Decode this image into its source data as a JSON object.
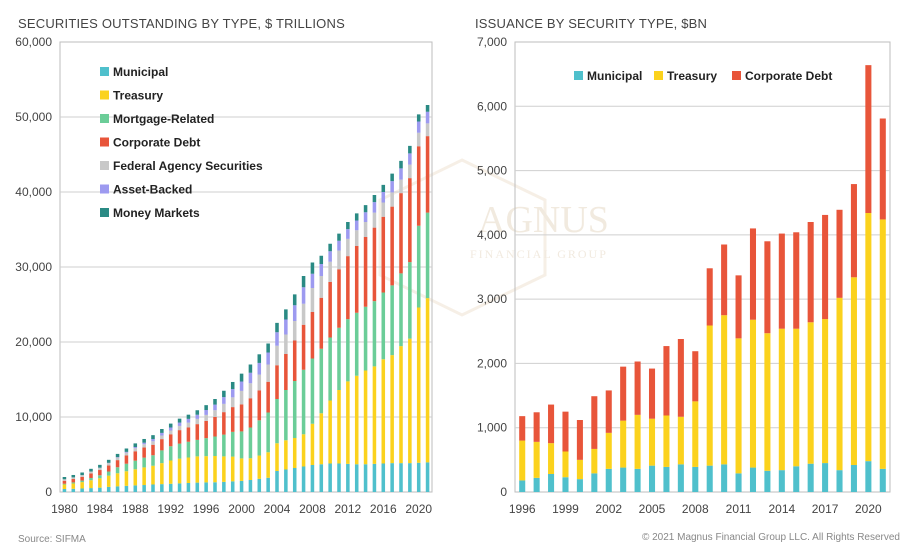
{
  "footer": {
    "source": "Source: SIFMA",
    "copyright": "© 2021 Magnus Financial Group LLC. All Rights Reserved"
  },
  "watermark": {
    "line1": "AGNUS",
    "line2": "FINANCIAL GROUP"
  },
  "colors": {
    "municipal": "#4fc0cc",
    "treasury": "#fbd21d",
    "mortgage": "#6bcd98",
    "corporate": "#e8553a",
    "agency": "#c8c8c8",
    "assetbacked": "#9d9af0",
    "money": "#2a8a84"
  },
  "chart_data": [
    {
      "type": "bar",
      "stacked": true,
      "title": "SECURITIES OUTSTANDING BY TYPE, $ TRILLIONS",
      "ylim": [
        0,
        60000
      ],
      "y_ticks": [
        "0",
        "10,000",
        "20,000",
        "30,000",
        "40,000",
        "50,000",
        "60,000"
      ],
      "x_ticks": [
        "1980",
        "1984",
        "1988",
        "1992",
        "1996",
        "2000",
        "2004",
        "2008",
        "2012",
        "2016",
        "2020"
      ],
      "grid": true,
      "legend_position": "top-left",
      "categories": [
        1980,
        1981,
        1982,
        1983,
        1984,
        1985,
        1986,
        1987,
        1988,
        1989,
        1990,
        1991,
        1992,
        1993,
        1994,
        1995,
        1996,
        1997,
        1998,
        1999,
        2000,
        2001,
        2002,
        2003,
        2004,
        2005,
        2006,
        2007,
        2008,
        2009,
        2010,
        2011,
        2012,
        2013,
        2014,
        2015,
        2016,
        2017,
        2018,
        2019,
        2020,
        2021
      ],
      "series": [
        {
          "name": "Municipal",
          "key": "municipal",
          "values": [
            400,
            430,
            470,
            520,
            580,
            680,
            750,
            820,
            880,
            930,
            1000,
            1050,
            1100,
            1150,
            1200,
            1250,
            1280,
            1300,
            1350,
            1420,
            1480,
            1600,
            1760,
            1900,
            2800,
            3000,
            3200,
            3400,
            3600,
            3700,
            3800,
            3800,
            3750,
            3700,
            3700,
            3750,
            3800,
            3850,
            3850,
            3850,
            3900,
            3950
          ]
        },
        {
          "name": "Treasury",
          "key": "treasury",
          "values": [
            600,
            700,
            850,
            1050,
            1250,
            1500,
            1750,
            1950,
            2150,
            2350,
            2500,
            2800,
            3100,
            3300,
            3400,
            3500,
            3500,
            3500,
            3400,
            3300,
            3000,
            2900,
            3100,
            3400,
            3700,
            3900,
            4000,
            4300,
            5500,
            6800,
            8400,
            9800,
            11000,
            11800,
            12500,
            13000,
            13900,
            14400,
            15600,
            16600,
            20700,
            21900
          ]
        },
        {
          "name": "Mortgage-Related",
          "key": "mortgage",
          "values": [
            100,
            150,
            200,
            300,
            400,
            550,
            800,
            1000,
            1150,
            1300,
            1400,
            1700,
            1900,
            2000,
            2100,
            2200,
            2400,
            2600,
            2900,
            3300,
            3600,
            4100,
            4700,
            5300,
            5900,
            6700,
            7600,
            8600,
            8700,
            8600,
            8400,
            8300,
            8300,
            8400,
            8500,
            8700,
            8900,
            9300,
            9700,
            10200,
            10900,
            11400
          ]
        },
        {
          "name": "Corporate Debt",
          "key": "corporate",
          "values": [
            400,
            450,
            500,
            600,
            700,
            800,
            950,
            1100,
            1250,
            1350,
            1400,
            1500,
            1600,
            1800,
            1900,
            2100,
            2300,
            2600,
            3000,
            3300,
            3600,
            3900,
            4000,
            4100,
            4500,
            4800,
            5400,
            6000,
            6200,
            6800,
            7400,
            7800,
            8400,
            8900,
            9300,
            9800,
            10100,
            10500,
            10700,
            11200,
            10600,
            10200
          ]
        },
        {
          "name": "Federal Agency Securities",
          "key": "agency",
          "values": [
            200,
            220,
            240,
            260,
            290,
            320,
            350,
            380,
            420,
            440,
            460,
            480,
            500,
            560,
            650,
            700,
            800,
            900,
            1100,
            1300,
            1800,
            2000,
            2100,
            2300,
            2600,
            2600,
            2600,
            2800,
            3200,
            2900,
            2700,
            2500,
            2300,
            2100,
            2000,
            2000,
            1900,
            1900,
            1800,
            1800,
            1800,
            1700
          ]
        },
        {
          "name": "Asset-Backed",
          "key": "assetbacked",
          "values": [
            0,
            0,
            0,
            0,
            20,
            40,
            60,
            100,
            150,
            200,
            300,
            350,
            400,
            450,
            500,
            550,
            650,
            750,
            900,
            1100,
            1250,
            1400,
            1550,
            1600,
            1800,
            2000,
            2100,
            2200,
            1900,
            1600,
            1400,
            1300,
            1300,
            1300,
            1300,
            1400,
            1400,
            1500,
            1500,
            1500,
            1500,
            1550
          ]
        },
        {
          "name": "Money Markets",
          "key": "money",
          "values": [
            300,
            320,
            340,
            360,
            380,
            400,
            420,
            450,
            480,
            500,
            520,
            520,
            520,
            520,
            560,
            600,
            650,
            750,
            850,
            950,
            1050,
            1100,
            1150,
            1200,
            1250,
            1350,
            1450,
            1500,
            1500,
            1100,
            1000,
            950,
            950,
            950,
            950,
            950,
            950,
            1000,
            1000,
            1000,
            950,
            900
          ]
        }
      ]
    },
    {
      "type": "bar",
      "stacked": true,
      "title": "ISSUANCE BY SECURITY TYPE, $BN",
      "ylim": [
        0,
        7000
      ],
      "y_ticks": [
        "0",
        "1,000",
        "2,000",
        "3,000",
        "4,000",
        "5,000",
        "6,000",
        "7,000"
      ],
      "x_ticks": [
        "1996",
        "1999",
        "2002",
        "2005",
        "2008",
        "2011",
        "2014",
        "2017",
        "2020"
      ],
      "grid": true,
      "legend_position": "top",
      "categories": [
        1996,
        1997,
        1998,
        1999,
        2000,
        2001,
        2002,
        2003,
        2004,
        2005,
        2006,
        2007,
        2008,
        2009,
        2010,
        2011,
        2012,
        2013,
        2014,
        2015,
        2016,
        2017,
        2018,
        2019,
        2020,
        2021
      ],
      "series": [
        {
          "name": "Municipal",
          "key": "municipal",
          "values": [
            180,
            220,
            280,
            230,
            200,
            290,
            360,
            380,
            360,
            410,
            390,
            430,
            390,
            410,
            430,
            290,
            380,
            330,
            340,
            400,
            440,
            450,
            340,
            420,
            480,
            360
          ]
        },
        {
          "name": "Treasury",
          "key": "treasury",
          "values": [
            620,
            560,
            480,
            400,
            300,
            380,
            560,
            730,
            840,
            730,
            800,
            740,
            1020,
            2180,
            2320,
            2100,
            2300,
            2140,
            2200,
            2140,
            2200,
            2240,
            2680,
            2920,
            3860,
            3880
          ]
        },
        {
          "name": "Corporate Debt",
          "key": "corporate",
          "values": [
            380,
            460,
            600,
            620,
            620,
            820,
            660,
            840,
            830,
            780,
            1080,
            1210,
            780,
            890,
            1100,
            980,
            1420,
            1430,
            1480,
            1500,
            1560,
            1620,
            1370,
            1450,
            2300,
            1570
          ]
        }
      ]
    }
  ]
}
